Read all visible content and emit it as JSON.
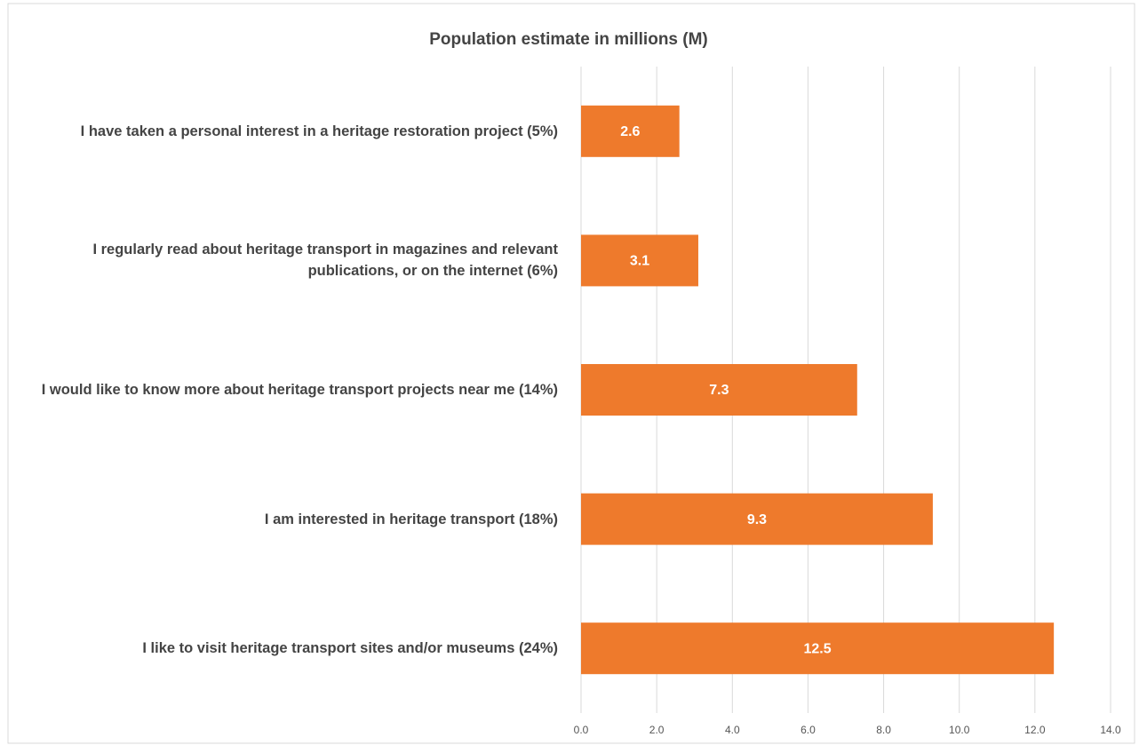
{
  "chart_data": {
    "type": "bar",
    "orientation": "horizontal",
    "title": "Population estimate in millions (M)",
    "categories": [
      "I have taken a personal interest in a heritage restoration project (5%)",
      "I regularly read about heritage transport in magazines and relevant publications, or on the internet (6%)",
      "I would like to know more about heritage transport projects near me (14%)",
      "I am interested in heritage transport (18%)",
      "I like to visit heritage transport sites and/or museums (24%)"
    ],
    "values": [
      2.6,
      3.1,
      7.3,
      9.3,
      12.5
    ],
    "color": "#ee7a2c",
    "xlim": [
      0,
      14
    ],
    "xticks": [
      {
        "value": 0,
        "label": "0.0"
      },
      {
        "value": 2,
        "label": "2.0"
      },
      {
        "value": 4,
        "label": "4.0"
      },
      {
        "value": 6,
        "label": "6.0"
      },
      {
        "value": 8,
        "label": "8.0"
      },
      {
        "value": 10,
        "label": "10.0"
      },
      {
        "value": 12,
        "label": "12.0"
      },
      {
        "value": 14,
        "label": "14.0"
      }
    ],
    "grid": true
  }
}
